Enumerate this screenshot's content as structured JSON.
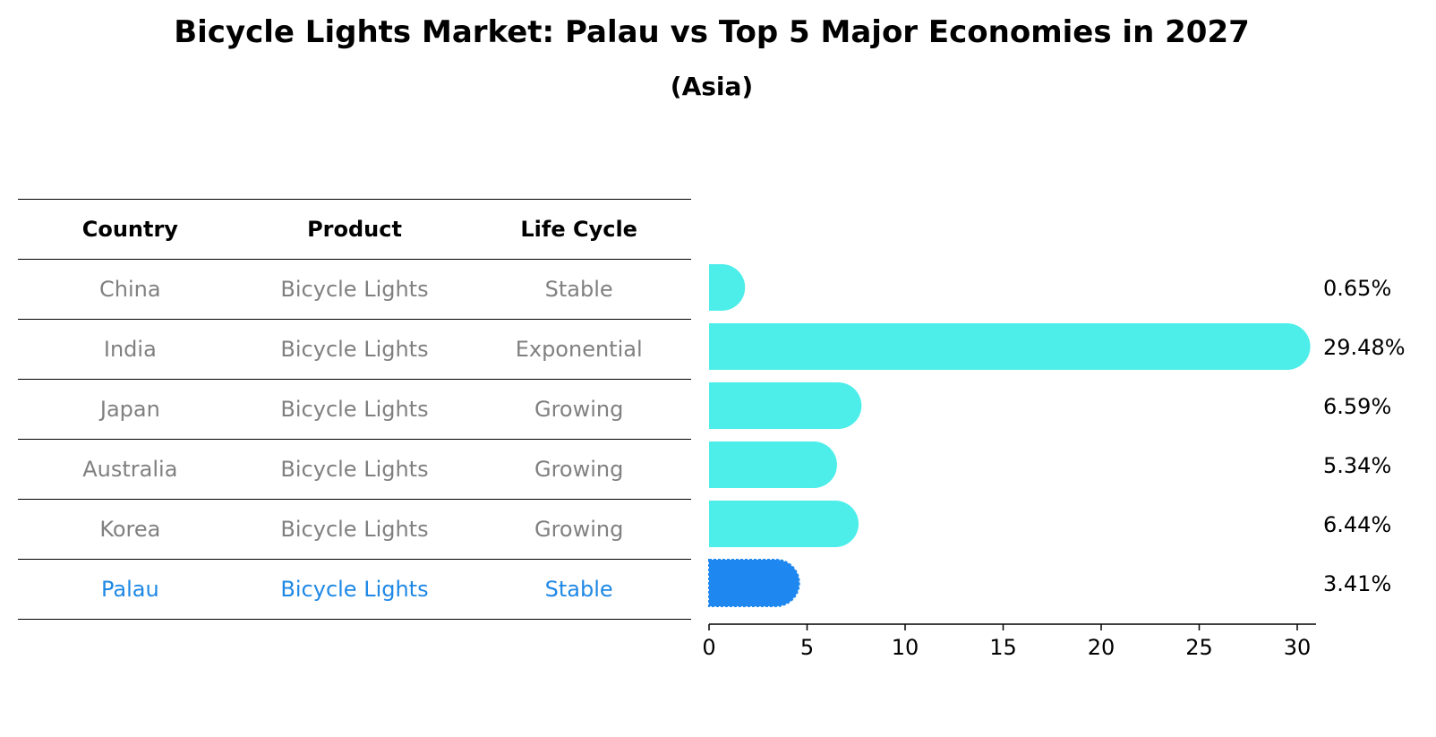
{
  "title": "Bicycle Lights Market: Palau vs Top 5 Major Economies in 2027",
  "subtitle": "(Asia)",
  "table": {
    "headers": [
      "Country",
      "Product",
      "Life Cycle"
    ],
    "rows": [
      [
        "China",
        "Bicycle Lights",
        "Stable"
      ],
      [
        "India",
        "Bicycle Lights",
        "Exponential"
      ],
      [
        "Japan",
        "Bicycle Lights",
        "Growing"
      ],
      [
        "Australia",
        "Bicycle Lights",
        "Growing"
      ],
      [
        "Korea",
        "Bicycle Lights",
        "Growing"
      ],
      [
        "Palau",
        "Bicycle Lights",
        "Stable"
      ]
    ],
    "highlight_row": 5
  },
  "chart_data": {
    "type": "bar",
    "orientation": "horizontal",
    "categories": [
      "China",
      "India",
      "Japan",
      "Australia",
      "Korea",
      "Palau"
    ],
    "values": [
      0.65,
      29.48,
      6.59,
      5.34,
      6.44,
      3.41
    ],
    "value_labels": [
      "0.65%",
      "29.48%",
      "6.59%",
      "5.34%",
      "6.44%",
      "3.41%"
    ],
    "xlim": [
      0,
      31
    ],
    "xticks": [
      0,
      5,
      10,
      15,
      20,
      25,
      30
    ],
    "xlabel": "",
    "ylabel": "",
    "grid": false,
    "colors": {
      "default": "#4deeea",
      "highlight": "#1e88f0"
    },
    "highlight_category": "Palau"
  }
}
